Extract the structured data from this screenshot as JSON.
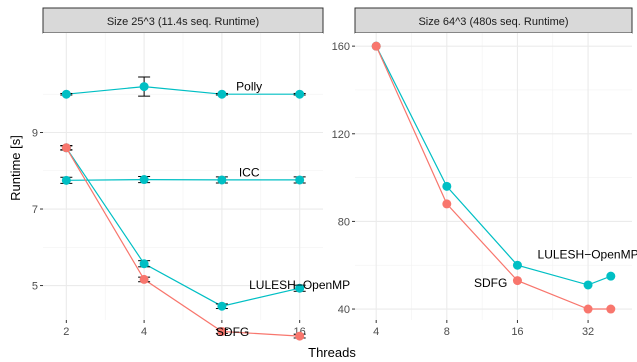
{
  "colors": {
    "sdfg": "#F8766D",
    "openmp": "#00BFC4",
    "ref": "#00BFC4",
    "grid": "#ebebeb",
    "strip": "#d9d9d9"
  },
  "axes": {
    "xlabel": "Threads",
    "ylabel": "Runtime [s]"
  },
  "chart_data": [
    {
      "type": "line",
      "title": "Size 25^3   (11.4s seq. Runtime)",
      "x_scale": "log2",
      "x_ticks": [
        2,
        4,
        8,
        16
      ],
      "y_ticks": [
        5,
        7,
        9
      ],
      "ylim": [
        4.1,
        11.6
      ],
      "grid": true,
      "series": [
        {
          "name": "Polly",
          "color": "#00BFC4",
          "x": [
            2,
            4,
            8,
            16
          ],
          "y": [
            10.0,
            10.2,
            10.0,
            10.0
          ],
          "err": [
            0.02,
            0.25,
            0.02,
            0.02
          ]
        },
        {
          "name": "ICC",
          "color": "#00BFC4",
          "x": [
            2,
            4,
            8,
            16
          ],
          "y": [
            7.75,
            7.77,
            7.76,
            7.76
          ],
          "err": [
            0.08,
            0.08,
            0.08,
            0.08
          ]
        },
        {
          "name": "LULESH−OpenMP",
          "color": "#00BFC4",
          "x": [
            2,
            4,
            8,
            16
          ],
          "y": [
            8.6,
            5.57,
            4.46,
            4.93
          ],
          "err": [
            0.06,
            0.08,
            0.06,
            0.08
          ]
        },
        {
          "name": "SDFG",
          "color": "#F8766D",
          "x": [
            2,
            4,
            8,
            16
          ],
          "y": [
            8.6,
            5.16,
            3.8,
            3.68
          ],
          "err": [
            0.05,
            0.06,
            0.05,
            0.05
          ]
        }
      ],
      "labels": [
        {
          "text": "Polly",
          "x": 10.2,
          "y": 10.2
        },
        {
          "text": "ICC",
          "x": 10.2,
          "y": 7.95
        },
        {
          "text": "LULESH−OpenMP",
          "x": 16,
          "y": 5.02
        },
        {
          "text": "SDFG",
          "x": 8.8,
          "y": 3.78
        }
      ]
    },
    {
      "type": "line",
      "title": "Size 64^3    (480s seq. Runtime)",
      "x_scale": "log2",
      "x_ticks": [
        4,
        8,
        16,
        32
      ],
      "y_ticks": [
        40,
        80,
        120,
        160
      ],
      "ylim": [
        35,
        166
      ],
      "grid": true,
      "series": [
        {
          "name": "LULESH−OpenMP",
          "color": "#00BFC4",
          "x": [
            4,
            8,
            16,
            32,
            40
          ],
          "y": [
            160,
            96,
            60,
            51,
            55
          ]
        },
        {
          "name": "SDFG",
          "color": "#F8766D",
          "x": [
            4,
            8,
            16,
            32,
            40
          ],
          "y": [
            160,
            88,
            53,
            40,
            40
          ]
        }
      ],
      "labels": [
        {
          "text": "LULESH−OpenMP",
          "x": 32,
          "y": 65
        },
        {
          "text": "SDFG",
          "x": 12.3,
          "y": 52
        }
      ]
    }
  ]
}
